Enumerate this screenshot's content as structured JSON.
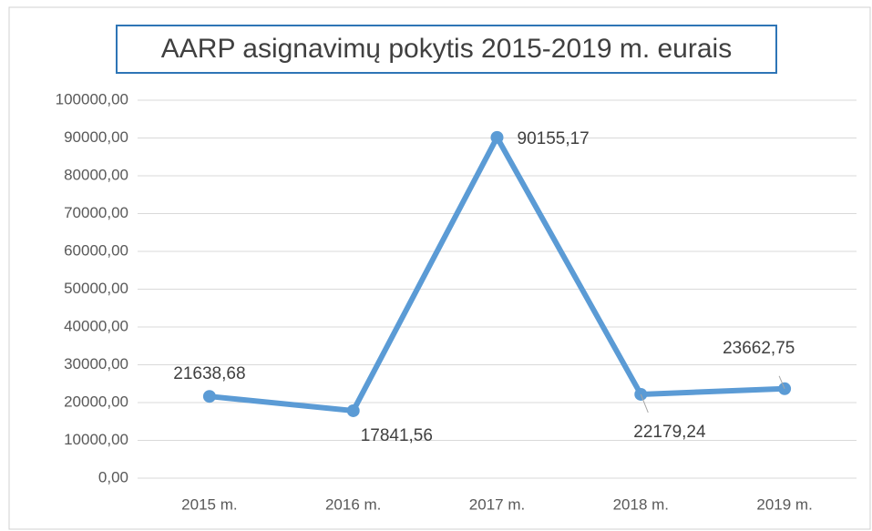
{
  "chart_data": {
    "type": "line",
    "title": "AARP  asignavimų pokytis 2015-2019 m. eurais",
    "categories": [
      "2015 m.",
      "2016 m.",
      "2017 m.",
      "2018 m.",
      "2019 m."
    ],
    "series": [
      {
        "name": "AARP",
        "color": "#5b9bd5",
        "values": [
          21638.68,
          17841.56,
          90155.17,
          22179.24,
          23662.75
        ],
        "value_labels": [
          "21638,68",
          "17841,56",
          "90155,17",
          "22179,24",
          "23662,75"
        ]
      }
    ],
    "ylim": [
      0,
      100000
    ],
    "yticks": [
      {
        "value": 0,
        "label": "0,00"
      },
      {
        "value": 10000,
        "label": "10000,00"
      },
      {
        "value": 20000,
        "label": "20000,00"
      },
      {
        "value": 30000,
        "label": "30000,00"
      },
      {
        "value": 40000,
        "label": "40000,00"
      },
      {
        "value": 50000,
        "label": "50000,00"
      },
      {
        "value": 60000,
        "label": "60000,00"
      },
      {
        "value": 70000,
        "label": "70000,00"
      },
      {
        "value": 80000,
        "label": "80000,00"
      },
      {
        "value": 90000,
        "label": "90000,00"
      },
      {
        "value": 100000,
        "label": "100000,00"
      }
    ],
    "grid": true
  }
}
